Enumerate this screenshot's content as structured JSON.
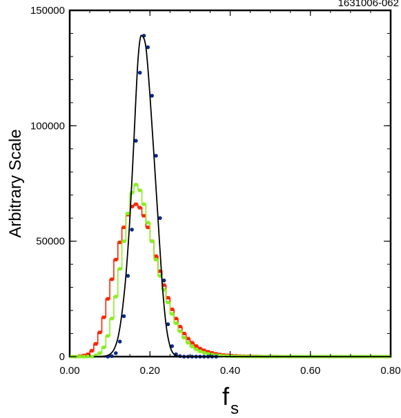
{
  "figure_id": "1631006-062",
  "chart_data": {
    "type": "line",
    "title": "",
    "xlabel": "f",
    "xlabel_subscript": "s",
    "ylabel": "Arbitrary Scale",
    "xlim": [
      0.0,
      0.8
    ],
    "ylim": [
      0,
      150000
    ],
    "x_ticks": [
      "0.00",
      "0.20",
      "0.40",
      "0.60",
      "0.80"
    ],
    "y_ticks": [
      "0",
      "50000",
      "100000",
      "150000"
    ],
    "grid": false,
    "legend": "none",
    "bin_width": 0.01,
    "series": [
      {
        "color": "#ff2200",
        "style": "step-markers",
        "x": [
          0.005,
          0.015,
          0.025,
          0.035,
          0.045,
          0.055,
          0.065,
          0.075,
          0.085,
          0.095,
          0.105,
          0.115,
          0.125,
          0.135,
          0.145,
          0.155,
          0.165,
          0.175,
          0.185,
          0.195,
          0.205,
          0.215,
          0.225,
          0.235,
          0.245,
          0.255,
          0.265,
          0.275,
          0.285,
          0.295,
          0.305,
          0.315,
          0.325,
          0.335,
          0.345,
          0.355,
          0.365,
          0.375,
          0.385,
          0.395,
          0.405,
          0.415,
          0.425,
          0.435,
          0.445,
          0.455,
          0.465,
          0.475,
          0.485,
          0.495,
          0.505,
          0.515,
          0.525,
          0.535,
          0.545,
          0.555,
          0.565,
          0.575,
          0.585,
          0.595,
          0.605,
          0.615,
          0.625,
          0.635,
          0.645,
          0.655,
          0.665,
          0.675,
          0.685,
          0.695,
          0.705,
          0.715,
          0.725,
          0.735,
          0.745,
          0.755,
          0.765,
          0.775,
          0.785,
          0.795
        ],
        "y": [
          0,
          0,
          200,
          500,
          1000,
          2500,
          5500,
          10500,
          17000,
          25000,
          33500,
          42000,
          49500,
          56000,
          61500,
          65000,
          66000,
          64500,
          61000,
          56000,
          50000,
          43500,
          37000,
          31000,
          25500,
          20500,
          16500,
          13000,
          10000,
          7800,
          6000,
          4600,
          3500,
          2700,
          2100,
          1600,
          1200,
          900,
          700,
          550,
          420,
          320,
          250,
          190,
          150,
          110,
          80,
          60,
          40,
          30,
          20,
          15,
          10,
          5,
          0,
          0,
          0,
          0,
          0,
          0,
          0,
          0,
          0,
          0,
          0,
          0,
          0,
          0,
          0,
          0,
          0,
          0,
          0,
          0,
          0,
          0,
          0,
          0,
          0,
          0
        ]
      },
      {
        "color": "#88ee22",
        "style": "step-markers",
        "x": [
          0.005,
          0.015,
          0.025,
          0.035,
          0.045,
          0.055,
          0.065,
          0.075,
          0.085,
          0.095,
          0.105,
          0.115,
          0.125,
          0.135,
          0.145,
          0.155,
          0.165,
          0.175,
          0.185,
          0.195,
          0.205,
          0.215,
          0.225,
          0.235,
          0.245,
          0.255,
          0.265,
          0.275,
          0.285,
          0.295,
          0.305,
          0.315,
          0.325,
          0.335,
          0.345,
          0.355,
          0.365,
          0.375,
          0.385,
          0.395,
          0.405,
          0.415,
          0.425,
          0.435,
          0.445,
          0.455,
          0.465,
          0.475,
          0.485,
          0.495,
          0.505,
          0.515,
          0.525,
          0.535,
          0.545,
          0.555,
          0.565,
          0.575,
          0.585,
          0.595,
          0.605,
          0.615,
          0.625,
          0.635,
          0.645,
          0.655,
          0.665,
          0.675,
          0.685,
          0.695,
          0.705,
          0.715,
          0.725,
          0.735,
          0.745,
          0.755,
          0.765,
          0.775,
          0.785,
          0.795
        ],
        "y": [
          0,
          0,
          0,
          0,
          0,
          0,
          500,
          1500,
          4000,
          9000,
          16500,
          26000,
          38000,
          50000,
          62000,
          71000,
          74500,
          72000,
          66000,
          58000,
          50000,
          42000,
          35000,
          29000,
          23500,
          18500,
          14500,
          11000,
          8200,
          6000,
          4400,
          3200,
          2300,
          1700,
          1200,
          850,
          600,
          420,
          300,
          200,
          140,
          100,
          70,
          50,
          30,
          20,
          10,
          5,
          0,
          0,
          0,
          0,
          0,
          0,
          0,
          0,
          0,
          0,
          0,
          0,
          0,
          0,
          0,
          0,
          0,
          0,
          0,
          0,
          0,
          0,
          0,
          0,
          0,
          0,
          0,
          0,
          0,
          0,
          0,
          0
        ]
      },
      {
        "color": "#0a2a8a",
        "style": "markers",
        "x": [
          0.095,
          0.105,
          0.115,
          0.125,
          0.135,
          0.145,
          0.155,
          0.165,
          0.175,
          0.185,
          0.195,
          0.205,
          0.215,
          0.225,
          0.235,
          0.245,
          0.255,
          0.265,
          0.275,
          0.285,
          0.295,
          0.305,
          0.315,
          0.325,
          0.335,
          0.345,
          0.355,
          0.365
        ],
        "y": [
          0,
          200,
          1500,
          6500,
          17500,
          35000,
          55000,
          93500,
          123000,
          139000,
          134000,
          113000,
          87000,
          60000,
          33000,
          14000,
          4500,
          1000,
          200,
          0,
          0,
          0,
          0,
          0,
          0,
          0,
          0,
          0
        ]
      },
      {
        "color": "#000000",
        "style": "line",
        "x": [
          0.06,
          0.07,
          0.08,
          0.09,
          0.1,
          0.11,
          0.12,
          0.13,
          0.14,
          0.15,
          0.16,
          0.165,
          0.17,
          0.175,
          0.18,
          0.19,
          0.2,
          0.21,
          0.22,
          0.23,
          0.24,
          0.25,
          0.26,
          0.27,
          0.28,
          0.3,
          0.4,
          0.6,
          0.8
        ],
        "y": [
          0,
          0,
          100,
          300,
          1000,
          3000,
          8000,
          18500,
          35000,
          60000,
          93500,
          112000,
          128000,
          137000,
          139000,
          134000,
          113000,
          87000,
          60000,
          33000,
          14000,
          4500,
          1000,
          200,
          0,
          0,
          0,
          0,
          0
        ]
      }
    ]
  }
}
